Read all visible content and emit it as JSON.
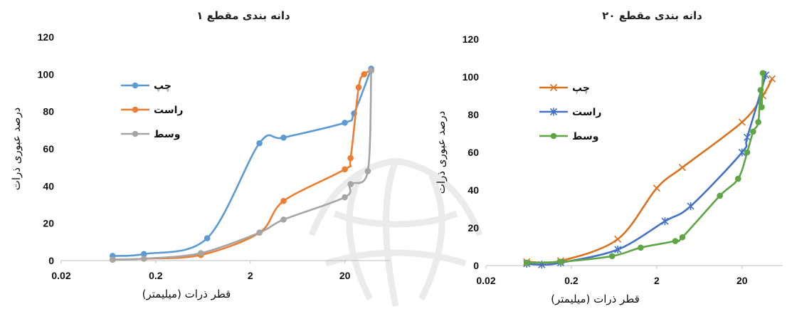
{
  "chart_data": [
    {
      "type": "line",
      "title": "دانه بندی مقطع ۱",
      "xlabel": "قطر ذرات (میلیمتر)",
      "ylabel": "درصد عبوری ذرات",
      "xscale": "log",
      "xlim": [
        0.02,
        60
      ],
      "ylim": [
        0,
        120
      ],
      "xticks": [
        "0.02",
        "0.2",
        "2",
        "20"
      ],
      "yticks": [
        "0",
        "20",
        "40",
        "60",
        "80",
        "100",
        "120"
      ],
      "legend_position": "top-left",
      "grid": false,
      "series": [
        {
          "name": "چپ",
          "color": "#5b9bd5",
          "marker": "circle",
          "x": [
            0.07,
            0.15,
            0.7,
            2.5,
            4.5,
            20,
            25,
            38
          ],
          "y": [
            2.5,
            3.5,
            12,
            63,
            66,
            74,
            79,
            103
          ]
        },
        {
          "name": "راست",
          "color": "#ed7d31",
          "marker": "circle",
          "x": [
            0.07,
            0.15,
            0.6,
            2.5,
            4.5,
            20,
            23,
            28,
            32,
            38
          ],
          "y": [
            0.5,
            1,
            3,
            15,
            32,
            49,
            55,
            93,
            100,
            102
          ]
        },
        {
          "name": "وسط",
          "color": "#a5a5a5",
          "marker": "circle",
          "x": [
            0.07,
            0.15,
            0.6,
            2.5,
            4.5,
            20,
            23,
            35,
            38
          ],
          "y": [
            0.5,
            1,
            4,
            15,
            22,
            34,
            41,
            48,
            102
          ]
        }
      ]
    },
    {
      "type": "line",
      "title": "دانه بندی مقطع ۲۰",
      "xlabel": "قطر ذرات (میلیمتر)",
      "ylabel": "درصد عبوری ذرات",
      "xscale": "log",
      "xlim": [
        0.02,
        60
      ],
      "ylim": [
        0,
        120
      ],
      "xticks": [
        "0.02",
        "0.2",
        "2",
        "20"
      ],
      "yticks": [
        "0",
        "20",
        "40",
        "60",
        "80",
        "100",
        "120"
      ],
      "legend_position": "top-left",
      "grid": false,
      "series": [
        {
          "name": "چپ",
          "color": "#d9711f",
          "marker": "x",
          "x": [
            0.06,
            0.15,
            0.7,
            2,
            4,
            20,
            35,
            45
          ],
          "y": [
            2,
            2.5,
            14,
            41,
            52,
            76,
            90,
            99
          ]
        },
        {
          "name": "راست",
          "color": "#4472c4",
          "marker": "asterisk",
          "x": [
            0.06,
            0.09,
            0.15,
            0.7,
            2.5,
            5,
            20,
            23,
            38
          ],
          "y": [
            1,
            0.5,
            1.5,
            8.5,
            23.5,
            31.5,
            60,
            68,
            101
          ]
        },
        {
          "name": "وسط",
          "color": "#5ea644",
          "marker": "circle",
          "x": [
            0.06,
            0.15,
            0.6,
            1.3,
            3.3,
            4,
            11,
            18,
            23,
            27,
            31,
            33,
            34,
            35
          ],
          "y": [
            1.5,
            2,
            5,
            9.5,
            13,
            15,
            37,
            46,
            60,
            71,
            76,
            93,
            84,
            102
          ]
        }
      ]
    }
  ]
}
